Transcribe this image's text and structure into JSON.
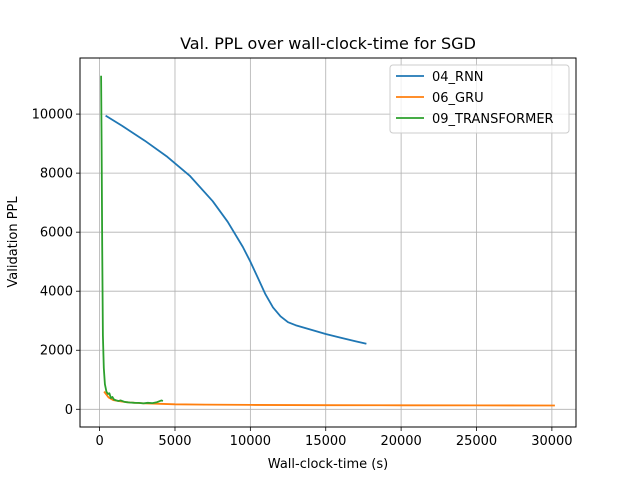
{
  "chart_data": {
    "type": "line",
    "title": "Val. PPL over wall-clock-time for SGD",
    "xlabel": "Wall-clock-time (s)",
    "ylabel": "Validation PPL",
    "xlim": [
      -1300,
      31600
    ],
    "ylim": [
      -600,
      11900
    ],
    "xticks": [
      0,
      5000,
      10000,
      15000,
      20000,
      25000,
      30000
    ],
    "yticks": [
      0,
      2000,
      4000,
      6000,
      8000,
      10000
    ],
    "grid": true,
    "legend_position": "top-right",
    "series": [
      {
        "name": "04_RNN",
        "color": "#1f77b4",
        "x": [
          400,
          1500,
          3000,
          4500,
          6000,
          7500,
          8500,
          9500,
          10000,
          10500,
          11000,
          11500,
          12000,
          12500,
          13000,
          14000,
          15000,
          16000,
          17000,
          17700
        ],
        "y": [
          9950,
          9600,
          9100,
          8550,
          7900,
          7050,
          6350,
          5500,
          5000,
          4450,
          3900,
          3450,
          3150,
          2950,
          2850,
          2700,
          2550,
          2420,
          2300,
          2220
        ]
      },
      {
        "name": "06_GRU",
        "color": "#ff7f0e",
        "x": [
          300,
          600,
          900,
          1500,
          2000,
          3000,
          4000,
          5000,
          7000,
          10000,
          15000,
          20000,
          25000,
          30000,
          30200
        ],
        "y": [
          600,
          400,
          310,
          260,
          230,
          200,
          185,
          170,
          160,
          150,
          140,
          135,
          132,
          130,
          130
        ]
      },
      {
        "name": "09_TRANSFORMER",
        "color": "#2ca02c",
        "x": [
          100,
          130,
          170,
          220,
          280,
          350,
          450,
          550,
          650,
          750,
          850,
          950,
          1100,
          1250,
          1400,
          1600,
          1800,
          2000,
          2300,
          2600,
          2900,
          3200,
          3500,
          3800,
          4100,
          4200
        ],
        "y": [
          11300,
          9000,
          5500,
          2500,
          1400,
          850,
          600,
          520,
          540,
          380,
          420,
          330,
          300,
          280,
          300,
          260,
          240,
          230,
          220,
          215,
          200,
          220,
          210,
          240,
          300,
          280
        ]
      }
    ]
  }
}
